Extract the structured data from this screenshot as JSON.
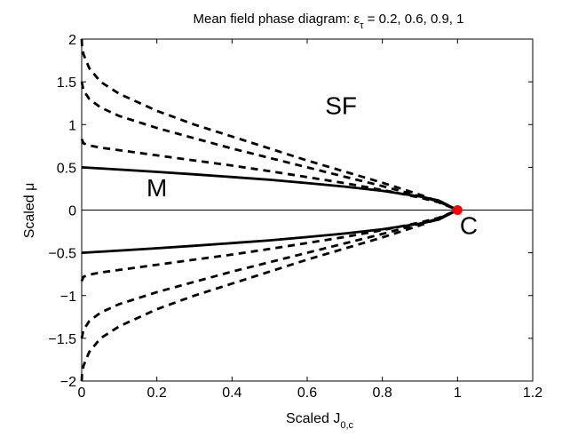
{
  "chart_data": {
    "type": "line",
    "title": {
      "prefix": "Mean field phase diagram: ε",
      "subscript": "τ",
      "suffix": " = 0.2, 0.6, 0.9, 1"
    },
    "xlabel": {
      "base": "Scaled J",
      "subscript": "0,c"
    },
    "ylabel": "Scaled μ",
    "xlim": [
      0,
      1.2
    ],
    "ylim": [
      -2,
      2
    ],
    "xticks": [
      "0",
      "0.2",
      "0.4",
      "0.6",
      "0.8",
      "1",
      "1.2"
    ],
    "yticks": [
      "2",
      "1.5",
      "1",
      "0.5",
      "0",
      "-0.5",
      "-1",
      "-1.5",
      "-2"
    ],
    "grid": false,
    "legend": "none",
    "annotations": [
      {
        "text": "SF",
        "x": 0.69,
        "y": 1.12
      },
      {
        "text": "M",
        "x": 0.2,
        "y": 0.16
      },
      {
        "text": "C",
        "x": 1.03,
        "y": -0.28
      }
    ],
    "critical_point": {
      "x": 1.0,
      "y": 0.0,
      "color": "#ff0000"
    },
    "zero_line": {
      "y": 0.0
    },
    "series": [
      {
        "style": "solid",
        "x": [
          0,
          0.1,
          0.2,
          0.3,
          0.4,
          0.5,
          0.6,
          0.7,
          0.8,
          0.9,
          0.95,
          1.0
        ],
        "upper": [
          0.5,
          0.474,
          0.447,
          0.418,
          0.387,
          0.354,
          0.316,
          0.274,
          0.224,
          0.158,
          0.112,
          0.0
        ],
        "lower": [
          -0.5,
          -0.474,
          -0.447,
          -0.418,
          -0.387,
          -0.354,
          -0.316,
          -0.274,
          -0.224,
          -0.158,
          -0.112,
          0.0
        ]
      },
      {
        "style": "dashed",
        "x": [
          0,
          0.005,
          0.02,
          0.05,
          0.1,
          0.2,
          0.3,
          0.4,
          0.5,
          0.6,
          0.7,
          0.8,
          0.9,
          0.95,
          1.0
        ],
        "upper": [
          0.83,
          0.78,
          0.755,
          0.73,
          0.7,
          0.64,
          0.58,
          0.52,
          0.455,
          0.385,
          0.315,
          0.235,
          0.145,
          0.09,
          0.0
        ],
        "lower": [
          -0.83,
          -0.78,
          -0.755,
          -0.73,
          -0.7,
          -0.64,
          -0.58,
          -0.52,
          -0.455,
          -0.385,
          -0.315,
          -0.235,
          -0.145,
          -0.09,
          0.0
        ]
      },
      {
        "style": "dashed",
        "x": [
          0,
          0.005,
          0.02,
          0.05,
          0.1,
          0.2,
          0.3,
          0.4,
          0.5,
          0.6,
          0.7,
          0.8,
          0.9,
          0.95,
          1.0
        ],
        "upper": [
          1.5,
          1.4,
          1.3,
          1.2,
          1.1,
          0.96,
          0.84,
          0.72,
          0.61,
          0.5,
          0.39,
          0.28,
          0.16,
          0.1,
          0.0
        ],
        "lower": [
          -1.5,
          -1.4,
          -1.3,
          -1.2,
          -1.1,
          -0.96,
          -0.84,
          -0.72,
          -0.61,
          -0.5,
          -0.39,
          -0.28,
          -0.16,
          -0.1,
          0.0
        ]
      },
      {
        "style": "dashed",
        "x": [
          0,
          0.001,
          0.005,
          0.02,
          0.05,
          0.1,
          0.2,
          0.3,
          0.4,
          0.5,
          0.6,
          0.7,
          0.8,
          0.9,
          0.95,
          1.0
        ],
        "upper": [
          2.0,
          1.92,
          1.82,
          1.66,
          1.5,
          1.36,
          1.16,
          1.0,
          0.86,
          0.72,
          0.58,
          0.45,
          0.32,
          0.18,
          0.1,
          0.0
        ],
        "lower": [
          -2.0,
          -1.92,
          -1.82,
          -1.66,
          -1.5,
          -1.36,
          -1.16,
          -1.0,
          -0.86,
          -0.72,
          -0.58,
          -0.45,
          -0.32,
          -0.18,
          -0.1,
          0.0
        ]
      }
    ]
  }
}
